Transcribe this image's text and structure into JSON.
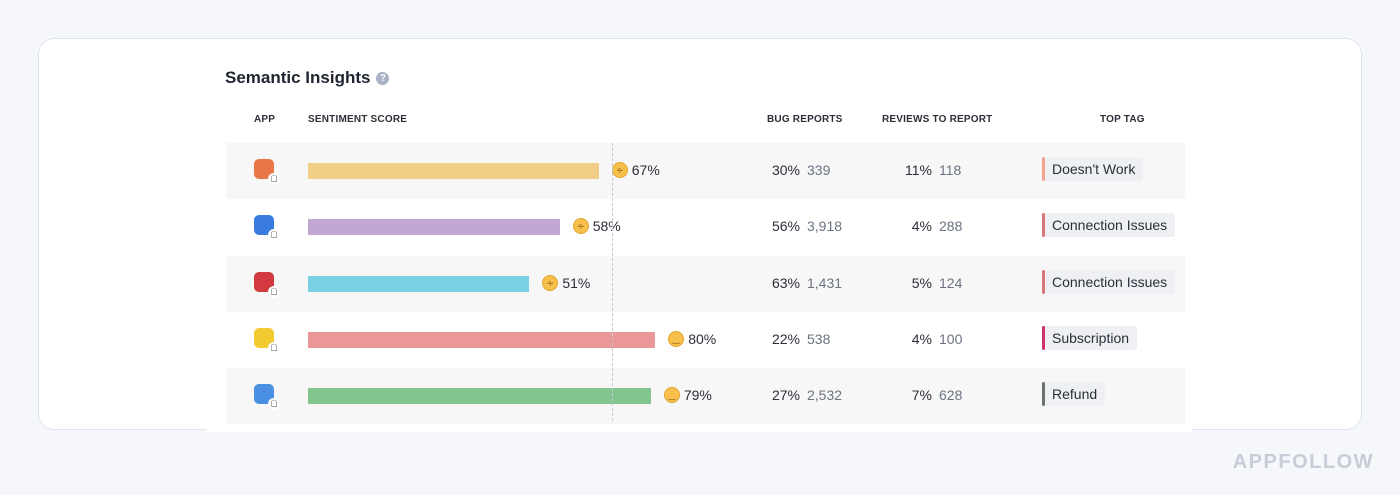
{
  "title": "Semantic Insights",
  "help_icon": "question-circle-icon",
  "headers": {
    "app": "APP",
    "sentiment": "SENTIMENT SCORE",
    "bugs": "BUG REPORTS",
    "reviews": "REVIEWS TO REPORT",
    "tag": "TOP TAG"
  },
  "threshold_percent": 70,
  "rows": [
    {
      "app_color": "#e8774a",
      "bar_color": "#f2cf86",
      "emoji": "confused-face",
      "score": 67,
      "score_label": "67%",
      "bug_pct": "30%",
      "bug_count": "339",
      "rev_pct": "11%",
      "rev_count": "118",
      "tag": "Doesn't Work",
      "tag_color": "#f0a48e"
    },
    {
      "app_color": "#3a7be0",
      "bar_color": "#c0a8d2",
      "emoji": "confused-face",
      "score": 58,
      "score_label": "58%",
      "bug_pct": "56%",
      "bug_count": "3,918",
      "rev_pct": "4%",
      "rev_count": "288",
      "tag": "Connection Issues",
      "tag_color": "#d9787a"
    },
    {
      "app_color": "#d23a3f",
      "bar_color": "#78d2e3",
      "emoji": "confused-face",
      "score": 51,
      "score_label": "51%",
      "bug_pct": "63%",
      "bug_count": "1,431",
      "rev_pct": "5%",
      "rev_count": "124",
      "tag": "Connection Issues",
      "tag_color": "#d9787a"
    },
    {
      "app_color": "#f2cb33",
      "bar_color": "#ec9797",
      "emoji": "slightly-smiling-face",
      "score": 80,
      "score_label": "80%",
      "bug_pct": "22%",
      "bug_count": "538",
      "rev_pct": "4%",
      "rev_count": "100",
      "tag": "Subscription",
      "tag_color": "#d0316f"
    },
    {
      "app_color": "#4a90e2",
      "bar_color": "#83c58e",
      "emoji": "slightly-smiling-face",
      "score": 79,
      "score_label": "79%",
      "bug_pct": "27%",
      "bug_count": "2,532",
      "rev_pct": "7%",
      "rev_count": "628",
      "tag": "Refund",
      "tag_color": "#6b7370"
    }
  ],
  "brand": "APPFOLLOW"
}
